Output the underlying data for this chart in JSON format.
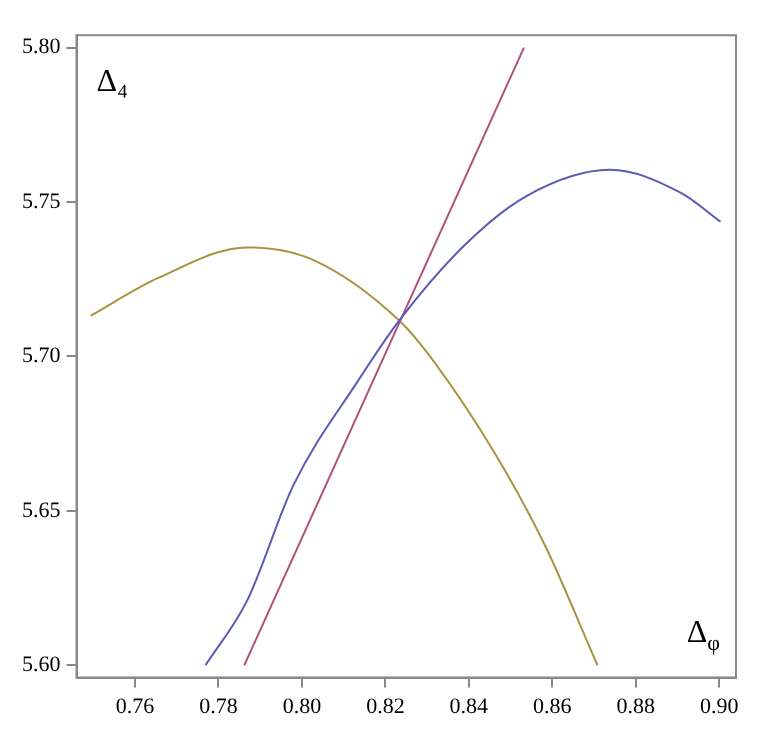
{
  "chart_data": {
    "type": "line",
    "xlabel": "Δ$_{φ}$",
    "ylabel": "Δ₄",
    "xlim": [
      0.746,
      0.904
    ],
    "ylim": [
      5.596,
      5.804
    ],
    "xticks": [
      0.76,
      0.78,
      {
        "value": 0.8,
        "label": "0.80"
      },
      0.82,
      0.84,
      0.86,
      0.88,
      {
        "value": 0.9,
        "label": "0.90"
      }
    ],
    "yticks": [
      {
        "value": 5.6,
        "label": "5.60"
      },
      5.65,
      {
        "value": 5.7,
        "label": "5.70"
      },
      5.75,
      {
        "value": 5.8,
        "label": "5.80"
      }
    ],
    "grid": false,
    "legend": false,
    "series": [
      {
        "color": "#5a5ab4",
        "x": [
          0.7769,
          0.7869,
          0.798,
          0.8134,
          0.8233,
          0.8392,
          0.8539,
          0.8738,
          0.8907,
          0.9003
        ],
        "values": [
          5.6,
          5.621,
          5.6584,
          5.692,
          5.7116,
          5.7363,
          5.752,
          5.7604,
          5.753,
          5.7436
        ]
      },
      {
        "color": "#b0507c",
        "x": [
          0.7862,
          0.8532
        ],
        "values": [
          5.6,
          5.8
        ]
      },
      {
        "color": "#a89340",
        "x": [
          0.7494,
          0.7656,
          0.7869,
          0.8024,
          0.8233,
          0.8318,
          0.8465,
          0.8583,
          0.8708
        ],
        "values": [
          5.7132,
          5.7254,
          5.7353,
          5.7314,
          5.7116,
          5.698,
          5.668,
          5.6386,
          5.6
        ]
      }
    ]
  }
}
